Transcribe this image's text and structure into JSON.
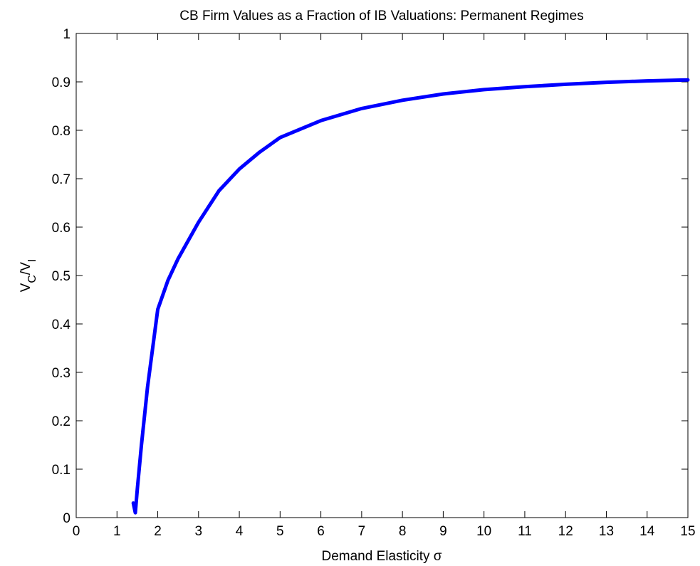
{
  "chart_data": {
    "type": "line",
    "title": "CB Firm Values as a Fraction of IB Valuations: Permanent Regimes",
    "xlabel": "Demand Elasticity σ",
    "ylabel": [
      "V",
      "C",
      "/V",
      "I"
    ],
    "x": [
      1.4,
      1.45,
      1.5,
      1.6,
      1.75,
      2,
      2.25,
      2.5,
      3,
      3.5,
      4,
      4.5,
      5,
      6,
      7,
      8,
      9,
      10,
      11,
      12,
      13,
      14,
      15
    ],
    "series": [
      {
        "name": "V_C/V_I",
        "color": "#0000ff",
        "values": [
          0.03,
          0.01,
          0.06,
          0.15,
          0.27,
          0.43,
          0.49,
          0.535,
          0.61,
          0.675,
          0.72,
          0.755,
          0.785,
          0.82,
          0.845,
          0.862,
          0.875,
          0.884,
          0.89,
          0.895,
          0.899,
          0.902,
          0.904
        ]
      }
    ],
    "xlim": [
      0,
      15
    ],
    "ylim": [
      0,
      1
    ],
    "xticks": [
      0,
      1,
      2,
      3,
      4,
      5,
      6,
      7,
      8,
      9,
      10,
      11,
      12,
      13,
      14,
      15
    ],
    "yticks": [
      0,
      0.1,
      0.2,
      0.3,
      0.4,
      0.5,
      0.6,
      0.7,
      0.8,
      0.9,
      1
    ],
    "grid": false
  }
}
